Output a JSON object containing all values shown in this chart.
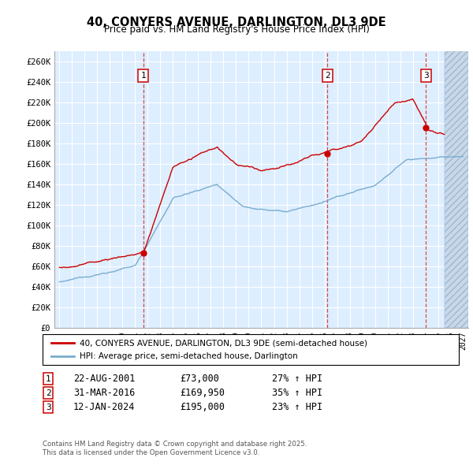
{
  "title": "40, CONYERS AVENUE, DARLINGTON, DL3 9DE",
  "subtitle": "Price paid vs. HM Land Registry's House Price Index (HPI)",
  "ylabel_ticks": [
    "£0",
    "£20K",
    "£40K",
    "£60K",
    "£80K",
    "£100K",
    "£120K",
    "£140K",
    "£160K",
    "£180K",
    "£200K",
    "£220K",
    "£240K",
    "£260K"
  ],
  "ytick_vals": [
    0,
    20000,
    40000,
    60000,
    80000,
    100000,
    120000,
    140000,
    160000,
    180000,
    200000,
    220000,
    240000,
    260000
  ],
  "ylim": [
    0,
    270000
  ],
  "xlim_start": 1994.6,
  "xlim_end": 2027.4,
  "sale_dates": [
    2001.645,
    2016.247,
    2024.038
  ],
  "sale_prices": [
    73000,
    169950,
    195000
  ],
  "sale_labels": [
    "1",
    "2",
    "3"
  ],
  "legend_line1": "40, CONYERS AVENUE, DARLINGTON, DL3 9DE (semi-detached house)",
  "legend_line2": "HPI: Average price, semi-detached house, Darlington",
  "table_data": [
    [
      "1",
      "22-AUG-2001",
      "£73,000",
      "27% ↑ HPI"
    ],
    [
      "2",
      "31-MAR-2016",
      "£169,950",
      "35% ↑ HPI"
    ],
    [
      "3",
      "12-JAN-2024",
      "£195,000",
      "23% ↑ HPI"
    ]
  ],
  "footer": "Contains HM Land Registry data © Crown copyright and database right 2025.\nThis data is licensed under the Open Government Licence v3.0.",
  "line_color_red": "#cc0000",
  "line_color_blue": "#7aadcf",
  "bg_color": "#ddeeff",
  "grid_color": "#ffffff",
  "hatch_start": 2025.5
}
